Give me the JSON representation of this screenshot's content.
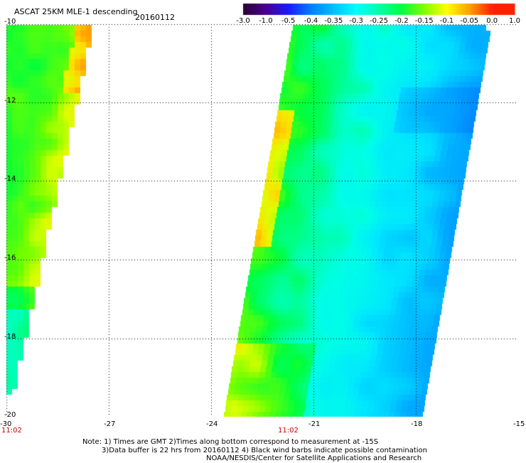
{
  "header": {
    "title": "ASCAT 25KM MLE-1 descending",
    "date": "20160112"
  },
  "colorbar": {
    "labels": [
      "-3.0",
      "-1.0",
      "-0.5",
      "-0.4",
      "-0.35",
      "-0.3",
      "-0.25",
      "-0.2",
      "-0.15",
      "-0.1",
      "-0.05",
      "0.0",
      "1.0"
    ],
    "colors": [
      "#2a0033",
      "#4b0090",
      "#1a1aff",
      "#0080ff",
      "#00bfff",
      "#00ffff",
      "#00ffaa",
      "#00ff40",
      "#80ff00",
      "#ffff00",
      "#ffa000",
      "#ff2000"
    ]
  },
  "axes": {
    "y_labels": [
      "-10",
      "-12",
      "-14",
      "-16",
      "-18",
      "-20"
    ],
    "x_labels": [
      "-30",
      "-27",
      "-24",
      "-21",
      "-18",
      "-15"
    ],
    "lat_range": [
      -20,
      -10
    ],
    "lon_range": [
      -30,
      -15
    ]
  },
  "times": {
    "swath1": "11:02",
    "swath2": "11:02"
  },
  "notes": {
    "line1": "Note: 1) Times are GMT 2)Times along bottom correspond to measurement at -15S",
    "line2": "3)Data buffer is 22 hrs from 20160112 4) Black wind barbs indicate possible contamination",
    "line3": "NOAA/NESDIS/Center for Satellite Applications and Research"
  }
}
